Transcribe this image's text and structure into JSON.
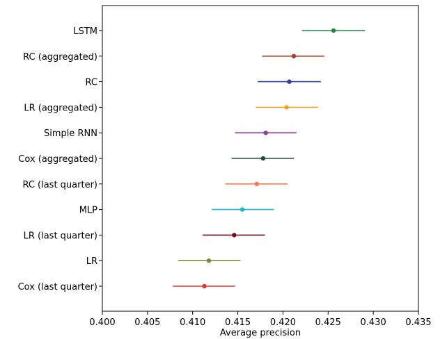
{
  "chart_data": {
    "type": "scatter",
    "title": "",
    "xlabel": "Average precision",
    "ylabel": "",
    "xlim": [
      0.4,
      0.435
    ],
    "xticks": [
      "0.400",
      "0.405",
      "0.410",
      "0.415",
      "0.420",
      "0.425",
      "0.430",
      "0.435"
    ],
    "xtick_values": [
      0.4,
      0.405,
      0.41,
      0.415,
      0.42,
      0.425,
      0.43,
      0.435
    ],
    "grid": false,
    "categories": [
      "LSTM",
      "RC (aggregated)",
      "RC",
      "LR (aggregated)",
      "Simple RNN",
      "Cox (aggregated)",
      "RC (last quarter)",
      "MLP",
      "LR (last quarter)",
      "LR",
      "Cox (last quarter)"
    ],
    "points": [
      {
        "label": "LSTM",
        "value": 0.4256,
        "low": 0.4221,
        "high": 0.4291,
        "color": "#1b8a3e"
      },
      {
        "label": "RC (aggregated)",
        "value": 0.4212,
        "low": 0.4177,
        "high": 0.4246,
        "color": "#a0432a"
      },
      {
        "label": "RC",
        "value": 0.4207,
        "low": 0.4172,
        "high": 0.4242,
        "color": "#2e3a9c"
      },
      {
        "label": "LR (aggregated)",
        "value": 0.4204,
        "low": 0.417,
        "high": 0.4239,
        "color": "#f5a020"
      },
      {
        "label": "Simple RNN",
        "value": 0.4181,
        "low": 0.4147,
        "high": 0.4215,
        "color": "#8e3aa0"
      },
      {
        "label": "Cox (aggregated)",
        "value": 0.4178,
        "low": 0.4143,
        "high": 0.4212,
        "color": "#234a40"
      },
      {
        "label": "RC (last quarter)",
        "value": 0.4171,
        "low": 0.4136,
        "high": 0.4205,
        "color": "#f0784a"
      },
      {
        "label": "MLP",
        "value": 0.4155,
        "low": 0.4121,
        "high": 0.419,
        "color": "#18b8c4"
      },
      {
        "label": "LR (last quarter)",
        "value": 0.4146,
        "low": 0.4111,
        "high": 0.418,
        "color": "#6e0f1e"
      },
      {
        "label": "LR",
        "value": 0.4118,
        "low": 0.4084,
        "high": 0.4153,
        "color": "#7d8c3a"
      },
      {
        "label": "Cox (last quarter)",
        "value": 0.4113,
        "low": 0.4078,
        "high": 0.4147,
        "color": "#e8302c"
      }
    ]
  }
}
